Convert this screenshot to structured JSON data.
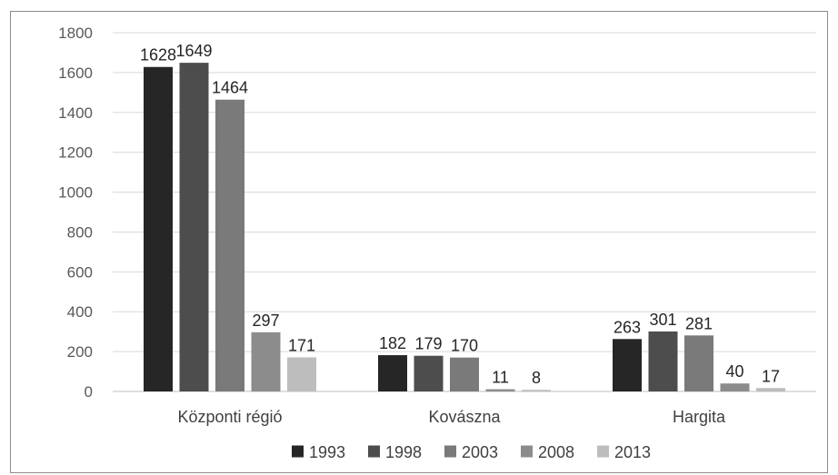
{
  "chart_data": {
    "type": "bar",
    "categories": [
      "Központi régió",
      "Kovászna",
      "Hargita"
    ],
    "series": [
      {
        "name": "1993",
        "color": "#262626",
        "values": [
          1628,
          182,
          263
        ]
      },
      {
        "name": "1998",
        "color": "#4d4d4d",
        "values": [
          1649,
          179,
          301
        ]
      },
      {
        "name": "2003",
        "color": "#7a7a7a",
        "values": [
          1464,
          170,
          281
        ]
      },
      {
        "name": "2008",
        "color": "#8c8c8c",
        "values": [
          297,
          11,
          40
        ]
      },
      {
        "name": "2013",
        "color": "#bdbdbd",
        "values": [
          171,
          8,
          17
        ]
      }
    ],
    "yticks": [
      0,
      200,
      400,
      600,
      800,
      1000,
      1200,
      1400,
      1600,
      1800
    ],
    "ylim": [
      0,
      1800
    ],
    "grid": true,
    "data_labels": true,
    "legend_position": "bottom",
    "title": "",
    "xlabel": "",
    "ylabel": ""
  }
}
